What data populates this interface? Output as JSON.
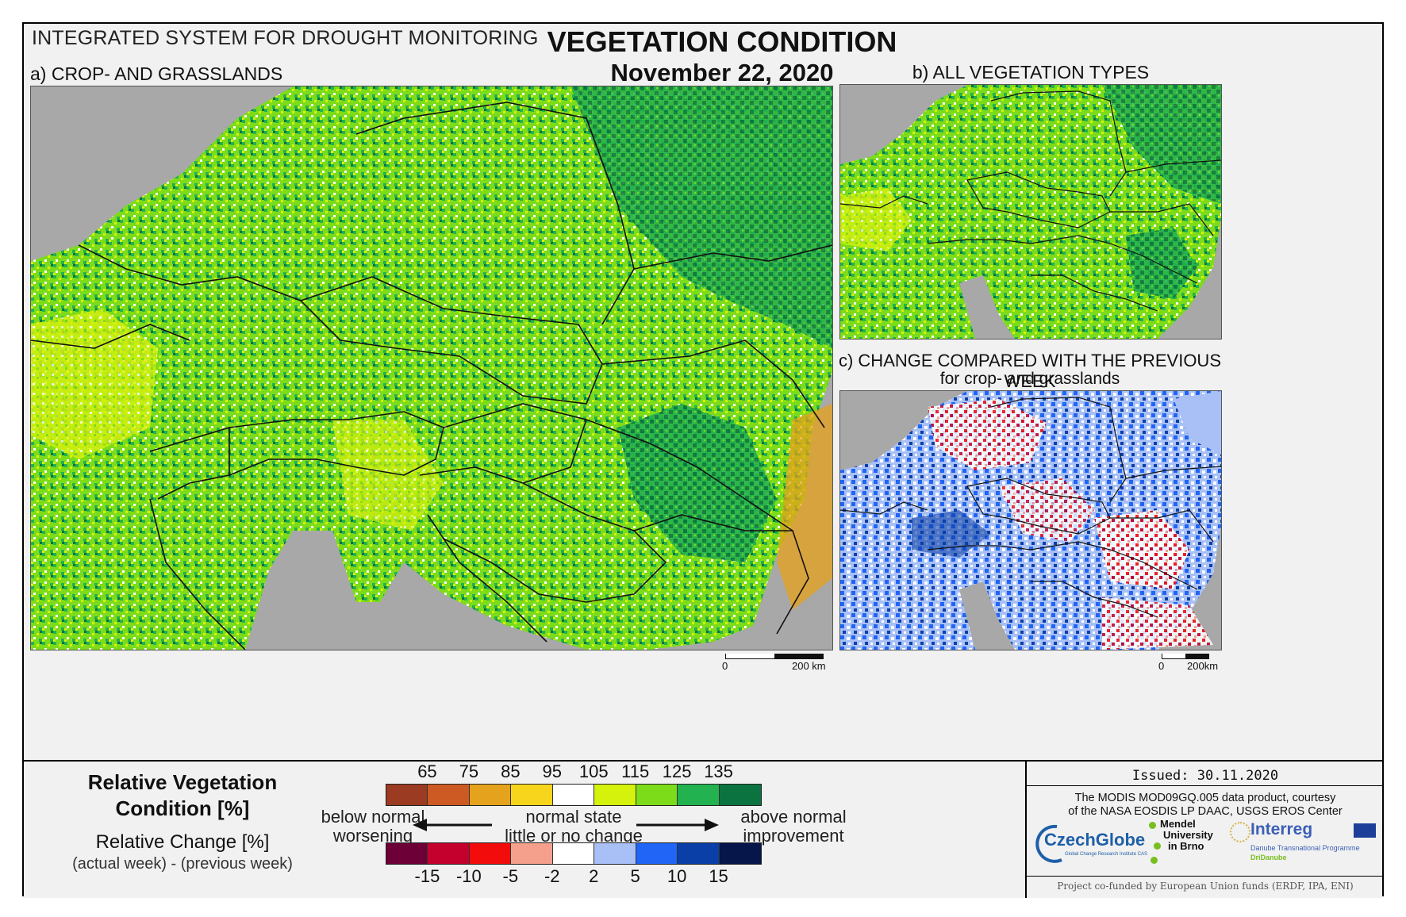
{
  "header": {
    "system_name": "INTEGRATED SYSTEM FOR DROUGHT MONITORING",
    "title": "VEGETATION CONDITION",
    "date": "November 22, 2020"
  },
  "panels": {
    "a": {
      "label": "a) CROP- AND GRASSLANDS",
      "scale_left": "0",
      "scale_right": "200 km"
    },
    "b": {
      "label": "b) ALL VEGETATION TYPES"
    },
    "c": {
      "label": "c) CHANGE COMPARED WITH THE PREVIOUS WEEK",
      "sublabel": "for crop- and grasslands",
      "scale_left": "0",
      "scale_right": "200km"
    }
  },
  "legend": {
    "rvc_title_line1": "Relative Vegetation",
    "rvc_title_line2": "Condition [%]",
    "rc_title": "Relative Change [%]",
    "rc_subtitle": "(actual week) - (previous week)",
    "rvc_ticks": [
      "65",
      "75",
      "85",
      "95",
      "105",
      "115",
      "125",
      "135"
    ],
    "rvc_colors": [
      "#9a3b22",
      "#cc5a22",
      "#e5a21c",
      "#f7d51c",
      "#ffffff",
      "#d4f20c",
      "#7ddc1a",
      "#22b24f",
      "#0b7340"
    ],
    "rc_ticks": [
      "-15",
      "-10",
      "-5",
      "-2",
      "2",
      "5",
      "10",
      "15"
    ],
    "rc_colors": [
      "#6e0038",
      "#c4002c",
      "#f20c0c",
      "#f5a08c",
      "#ffffff",
      "#a8c0f5",
      "#2065f5",
      "#0b3fa8",
      "#06154a"
    ],
    "left_line1": "below normal",
    "left_line2": "worsening",
    "center_line1": "normal state",
    "center_line2": "little or no change",
    "right_line1": "above normal",
    "right_line2": "improvement"
  },
  "credits": {
    "issued": "Issued: 30.11.2020",
    "source_line1": "The MODIS MOD09GQ.005 data product, courtesy",
    "source_line2": "of the NASA EOSDIS LP DAAC, USGS EROS Center",
    "logo_czechglobe": "CzechGlobe",
    "logo_czechglobe_sub": "Global Change Research Institute CAS",
    "logo_mendel_1": "Mendel",
    "logo_mendel_2": "University",
    "logo_mendel_3": "in Brno",
    "logo_interreg": "Interreg",
    "logo_interreg_sub1": "Danube Transnational Programme",
    "logo_interreg_sub2": "DriDanube",
    "cofunded": "Project co-funded by European Union funds (ERDF, IPA, ENI)"
  },
  "colors": {
    "sea": "#a8a8a8",
    "frame_bg": "#f1f1f1",
    "veg_dark": "#0b7340",
    "veg_mid": "#22b24f",
    "veg_light": "#7ddc1a",
    "veg_yellowgreen": "#d4f20c",
    "deficit": "#e5a21c"
  }
}
